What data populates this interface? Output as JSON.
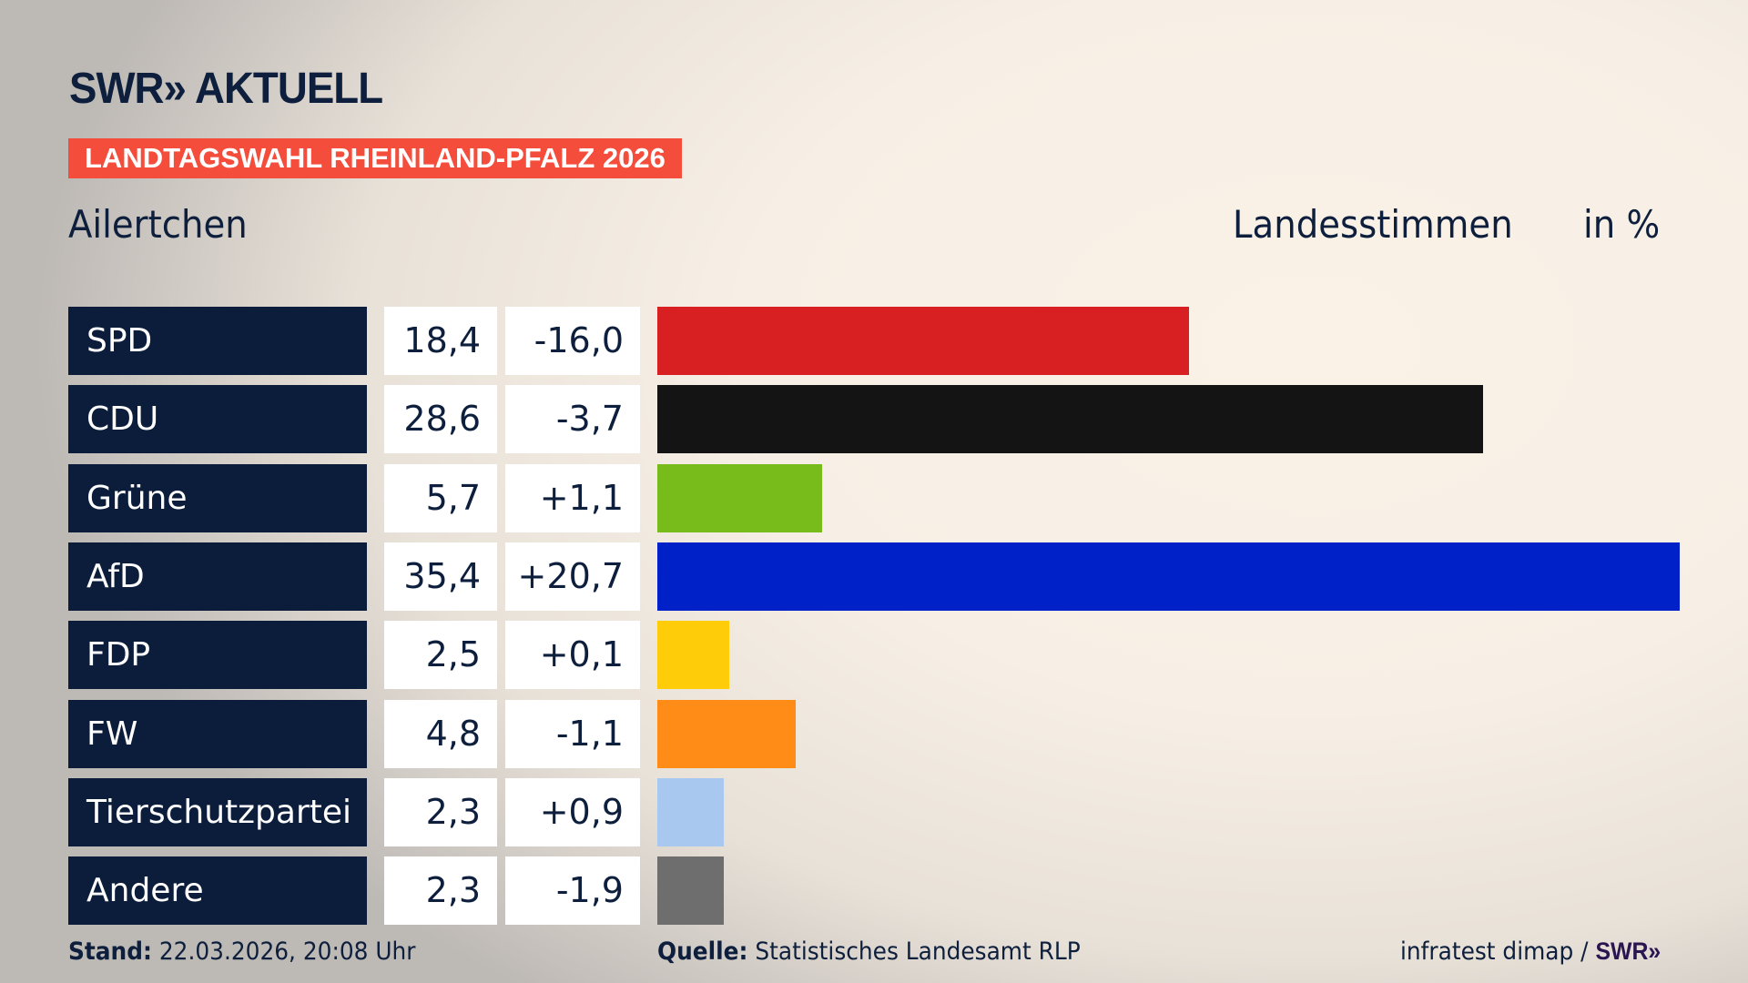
{
  "header": {
    "logo": "SWR» AKTUELL",
    "tag": "LANDTAGSWAHL RHEINLAND-PFALZ 2026",
    "place": "Ailertchen",
    "vote_type": "Landesstimmen",
    "unit": "in %"
  },
  "chart_data": {
    "type": "bar",
    "orientation": "horizontal",
    "xlim": [
      0,
      35.4
    ],
    "categories": [
      "SPD",
      "CDU",
      "Grüne",
      "AfD",
      "FDP",
      "FW",
      "Tierschutzpartei",
      "Andere"
    ],
    "values_label": [
      "18,4",
      "28,6",
      "5,7",
      "35,4",
      "2,5",
      "4,8",
      "2,3",
      "2,3"
    ],
    "values": [
      18.4,
      28.6,
      5.7,
      35.4,
      2.5,
      4.8,
      2.3,
      2.3
    ],
    "changes": [
      "-16,0",
      "-3,7",
      "+1,1",
      "+20,7",
      "+0,1",
      "-1,1",
      "+0,9",
      "-1,9"
    ],
    "colors": [
      "#d81f22",
      "#141414",
      "#78bc1c",
      "#0021c8",
      "#ffcc0a",
      "#ff8c16",
      "#a9c8f0",
      "#6e6e6e"
    ]
  },
  "footer": {
    "stand_label": "Stand:",
    "stand_value": "22.03.2026, 20:08 Uhr",
    "source_label": "Quelle:",
    "source_value": "Statistisches Landesamt RLP",
    "credit": "infratest dimap / ",
    "credit_brand": "SWR»"
  }
}
